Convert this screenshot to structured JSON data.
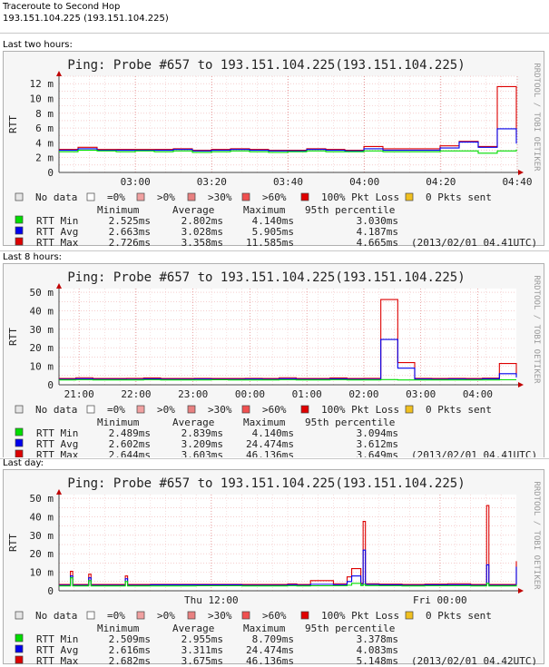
{
  "page": {
    "title": "Traceroute to Second Hop",
    "host": "193.151.104.225 (193.151.104.225)"
  },
  "legend_labels": [
    "No data",
    "=0%",
    ">0%",
    ">30%",
    ">60%",
    "100% Pkt Loss",
    "0 Pkts sent"
  ],
  "legend_colors": [
    "#e6e6e6",
    "#ffffff",
    "#f0a0a0",
    "#e88080",
    "#f05050",
    "#e00000",
    "#f0c020"
  ],
  "stat_headers": [
    "Minimum",
    "Average",
    "Maximum",
    "95th percentile"
  ],
  "series_colors": {
    "RTT Min": "#00dd00",
    "RTT Avg": "#0000ee",
    "RTT Max": "#dd0000"
  },
  "chart_data": [
    {
      "section": "Last two hours:",
      "type": "line",
      "title": "Ping: Probe #657 to 193.151.104.225(193.151.104.225)",
      "ylabel": "RTT",
      "side_label": "RRDTOOL / TOBI OETIKER",
      "ylim": [
        0,
        13
      ],
      "yticks": [
        0,
        2,
        4,
        6,
        8,
        10,
        12
      ],
      "ytick_labels": [
        "0",
        "2 m",
        "4 m",
        "6 m",
        "8 m",
        "10 m",
        "12 m"
      ],
      "xticks": [
        "03:00",
        "03:20",
        "03:40",
        "04:00",
        "04:20",
        "04:40"
      ],
      "x": [
        "02:40",
        "02:45",
        "02:50",
        "02:55",
        "03:00",
        "03:05",
        "03:10",
        "03:15",
        "03:20",
        "03:25",
        "03:30",
        "03:35",
        "03:40",
        "03:45",
        "03:50",
        "03:55",
        "04:00",
        "04:05",
        "04:10",
        "04:15",
        "04:20",
        "04:25",
        "04:30",
        "04:35",
        "04:40"
      ],
      "series": [
        {
          "name": "RTT Min",
          "values": [
            2.8,
            3.0,
            2.9,
            2.8,
            2.9,
            2.8,
            2.9,
            2.7,
            2.8,
            2.9,
            2.8,
            2.7,
            2.8,
            2.9,
            2.8,
            2.8,
            2.9,
            2.8,
            2.8,
            2.8,
            2.9,
            2.9,
            2.6,
            2.9,
            3.1
          ]
        },
        {
          "name": "RTT Avg",
          "values": [
            3.0,
            3.2,
            3.0,
            3.0,
            3.0,
            3.0,
            3.1,
            2.9,
            3.0,
            3.1,
            3.0,
            2.9,
            2.9,
            3.1,
            3.0,
            2.9,
            3.2,
            3.0,
            3.0,
            3.0,
            3.3,
            4.1,
            3.4,
            5.9,
            3.9
          ]
        },
        {
          "name": "RTT Max",
          "values": [
            3.1,
            3.4,
            3.1,
            3.1,
            3.1,
            3.1,
            3.2,
            3.0,
            3.1,
            3.2,
            3.1,
            3.0,
            3.0,
            3.2,
            3.1,
            3.0,
            3.5,
            3.2,
            3.2,
            3.2,
            3.6,
            4.2,
            3.5,
            11.6,
            4.8
          ]
        }
      ],
      "stats": [
        {
          "name": "RTT Min",
          "min": "2.525ms",
          "avg": "2.802ms",
          "max": "4.140ms",
          "p95": "3.030ms",
          "ts": ""
        },
        {
          "name": "RTT Avg",
          "min": "2.663ms",
          "avg": "3.028ms",
          "max": "5.905ms",
          "p95": "4.187ms",
          "ts": ""
        },
        {
          "name": "RTT Max",
          "min": "2.726ms",
          "avg": "3.358ms",
          "max": "11.585ms",
          "p95": "4.665ms",
          "ts": "(2013/02/01 04.41UTC)"
        }
      ]
    },
    {
      "section": "Last 8 hours:",
      "type": "line",
      "title": "Ping: Probe #657 to 193.151.104.225(193.151.104.225)",
      "ylabel": "RTT",
      "side_label": "RRDTOOL / TOBI OETIKER",
      "ylim": [
        0,
        52
      ],
      "yticks": [
        0,
        10,
        20,
        30,
        40,
        50
      ],
      "ytick_labels": [
        "0",
        "10 m",
        "20 m",
        "30 m",
        "40 m",
        "50 m"
      ],
      "xticks": [
        "21:00",
        "22:00",
        "23:00",
        "00:00",
        "01:00",
        "02:00",
        "03:00",
        "04:00"
      ],
      "x": [
        "20:40",
        "21:00",
        "21:20",
        "21:40",
        "22:00",
        "22:20",
        "22:40",
        "23:00",
        "23:20",
        "23:40",
        "00:00",
        "00:20",
        "00:40",
        "01:00",
        "01:20",
        "01:40",
        "02:00",
        "02:20",
        "02:30",
        "02:35",
        "02:40",
        "03:00",
        "03:20",
        "03:40",
        "04:00",
        "04:20",
        "04:30",
        "04:40"
      ],
      "series": [
        {
          "name": "RTT Min",
          "values": [
            2.6,
            2.7,
            2.6,
            2.6,
            2.6,
            2.7,
            2.6,
            2.6,
            2.6,
            2.7,
            2.6,
            2.6,
            2.6,
            2.7,
            2.6,
            2.6,
            2.7,
            2.6,
            2.6,
            2.8,
            2.6,
            2.6,
            2.6,
            2.6,
            2.6,
            2.6,
            2.7,
            2.7
          ]
        },
        {
          "name": "RTT Avg",
          "values": [
            3.0,
            3.3,
            3.0,
            3.0,
            3.0,
            3.2,
            3.0,
            3.0,
            3.1,
            3.0,
            3.0,
            3.1,
            3.0,
            3.3,
            3.0,
            3.0,
            3.2,
            3.0,
            3.0,
            24.5,
            9.0,
            3.1,
            3.0,
            3.1,
            3.0,
            3.2,
            6.0,
            4.0
          ]
        },
        {
          "name": "RTT Max",
          "values": [
            3.4,
            3.8,
            3.4,
            3.4,
            3.5,
            3.7,
            3.4,
            3.4,
            3.5,
            3.4,
            3.4,
            3.5,
            3.4,
            3.8,
            3.4,
            3.4,
            3.7,
            3.4,
            3.5,
            46.1,
            12.0,
            3.5,
            3.4,
            3.5,
            3.4,
            3.6,
            11.5,
            5.0
          ]
        }
      ],
      "stats": [
        {
          "name": "RTT Min",
          "min": "2.489ms",
          "avg": "2.839ms",
          "max": "4.140ms",
          "p95": "3.094ms",
          "ts": ""
        },
        {
          "name": "RTT Avg",
          "min": "2.602ms",
          "avg": "3.209ms",
          "max": "24.474ms",
          "p95": "3.612ms",
          "ts": ""
        },
        {
          "name": "RTT Max",
          "min": "2.644ms",
          "avg": "3.603ms",
          "max": "46.136ms",
          "p95": "3.649ms",
          "ts": "(2013/02/01 04.41UTC)"
        }
      ]
    },
    {
      "section": "Last day:",
      "type": "line",
      "title": "Ping: Probe #657 to 193.151.104.225(193.151.104.225)",
      "ylabel": "RTT",
      "side_label": "RRDTOOL / TOBI OETIKER",
      "ylim": [
        0,
        52
      ],
      "yticks": [
        0,
        10,
        20,
        30,
        40,
        50
      ],
      "ytick_labels": [
        "0",
        "10 m",
        "20 m",
        "30 m",
        "40 m",
        "50 m"
      ],
      "xticks": [
        "Thu 12:00",
        "Fri 00:00"
      ],
      "xtick_positions": [
        0.333,
        0.833
      ],
      "x_fractions": [
        0.0,
        0.02,
        0.025,
        0.03,
        0.06,
        0.065,
        0.07,
        0.1,
        0.14,
        0.145,
        0.15,
        0.2,
        0.3,
        0.4,
        0.5,
        0.52,
        0.55,
        0.6,
        0.63,
        0.64,
        0.66,
        0.665,
        0.67,
        0.7,
        0.75,
        0.8,
        0.85,
        0.9,
        0.93,
        0.935,
        0.94,
        0.96,
        0.99,
        1.0
      ],
      "series": [
        {
          "name": "RTT Min",
          "values": [
            2.6,
            2.6,
            7.0,
            2.6,
            2.6,
            5.5,
            2.6,
            2.6,
            2.6,
            5.0,
            2.6,
            2.6,
            2.7,
            2.6,
            2.7,
            2.6,
            2.7,
            2.7,
            3.0,
            4.0,
            2.8,
            3.5,
            2.8,
            2.7,
            2.6,
            2.7,
            2.7,
            2.6,
            2.6,
            4.0,
            2.6,
            2.6,
            2.6,
            3.3
          ]
        },
        {
          "name": "RTT Avg",
          "values": [
            3.0,
            3.0,
            8.0,
            3.0,
            3.0,
            7.0,
            3.0,
            3.0,
            3.0,
            6.5,
            3.0,
            3.2,
            3.2,
            3.0,
            3.3,
            3.0,
            3.5,
            3.3,
            5.0,
            8.0,
            3.5,
            22.0,
            3.4,
            3.2,
            3.0,
            3.2,
            3.3,
            3.0,
            3.0,
            14.0,
            3.0,
            3.0,
            3.0,
            13.0
          ]
        },
        {
          "name": "RTT Max",
          "values": [
            3.4,
            3.4,
            10.5,
            3.4,
            3.4,
            9.0,
            3.4,
            3.4,
            3.4,
            8.0,
            3.4,
            3.5,
            3.5,
            3.4,
            3.7,
            3.4,
            5.5,
            3.8,
            7.5,
            12.0,
            4.0,
            37.5,
            3.8,
            3.6,
            3.4,
            3.6,
            3.8,
            3.4,
            3.4,
            46.1,
            3.4,
            3.4,
            3.4,
            16.0
          ]
        }
      ],
      "stats": [
        {
          "name": "RTT Min",
          "min": "2.509ms",
          "avg": "2.955ms",
          "max": "8.709ms",
          "p95": "3.378ms",
          "ts": ""
        },
        {
          "name": "RTT Avg",
          "min": "2.616ms",
          "avg": "3.311ms",
          "max": "24.474ms",
          "p95": "4.083ms",
          "ts": ""
        },
        {
          "name": "RTT Max",
          "min": "2.682ms",
          "avg": "3.675ms",
          "max": "46.136ms",
          "p95": "5.148ms",
          "ts": "(2013/02/01 04.42UTC)"
        }
      ]
    }
  ]
}
